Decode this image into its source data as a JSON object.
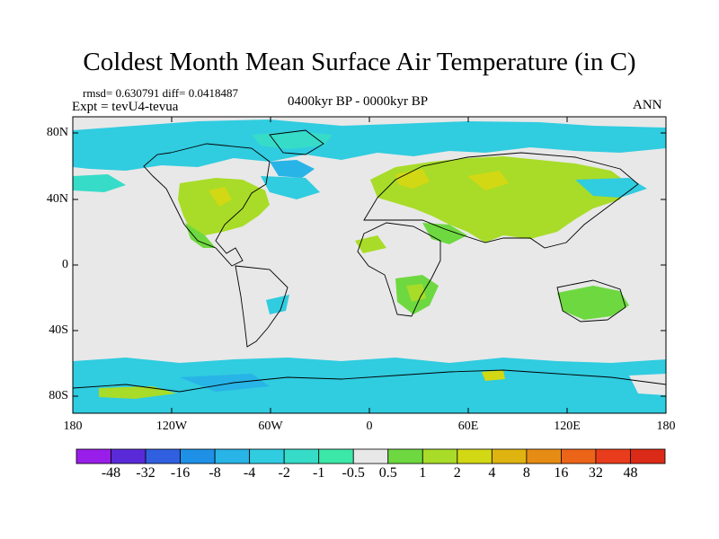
{
  "title": "Coldest Month Mean Surface Air Temperature (in C)",
  "stats": "rmsd= 0.630791 diff= 0.0418487",
  "experiment": "Expt = tevU4-tevua",
  "period": "0400kyr BP - 0000kyr BP",
  "season": "ANN",
  "map": {
    "projection": "cylindrical equidistant",
    "background_color": "#e8e8e8",
    "lat_labels": [
      "80N",
      "40N",
      "0",
      "40S",
      "80S"
    ],
    "lon_labels": [
      "180",
      "120W",
      "60W",
      "0",
      "60E",
      "120E",
      "180"
    ]
  },
  "colorbar": {
    "labels": [
      "-48",
      "-32",
      "-16",
      "-8",
      "-4",
      "-2",
      "-1",
      "-0.5",
      "0.5",
      "1",
      "2",
      "4",
      "8",
      "16",
      "32",
      "48"
    ],
    "colors": [
      "#9a1eea",
      "#5a2ad8",
      "#3060e0",
      "#1e90e6",
      "#28b4e6",
      "#30cce0",
      "#36dcc8",
      "#3ce8a8",
      "#e8e8e8",
      "#6ed840",
      "#a8dc28",
      "#d2d814",
      "#e0b410",
      "#e68c14",
      "#ec6418",
      "#e83c1c",
      "#dc2a18"
    ]
  },
  "regions": [
    {
      "name": "arctic-ocean-cool",
      "color": "#30cce0"
    },
    {
      "name": "eurasia-warm",
      "color": "#a8dc28"
    },
    {
      "name": "north-america-warm",
      "color": "#a8dc28"
    },
    {
      "name": "southern-ocean-cool",
      "color": "#30cce0"
    },
    {
      "name": "africa-warm",
      "color": "#6ed840"
    },
    {
      "name": "australia-warm",
      "color": "#6ed840"
    }
  ]
}
